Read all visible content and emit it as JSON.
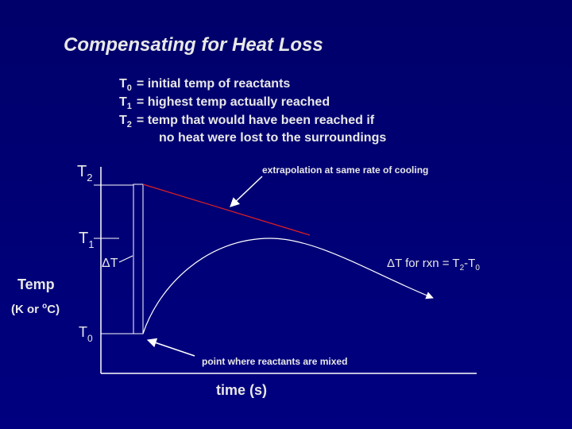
{
  "title": "Compensating for Heat Loss",
  "definitions": [
    {
      "symbol": "T",
      "sub": "0",
      "text": "= initial temp of reactants"
    },
    {
      "symbol": "T",
      "sub": "1",
      "text": "= highest temp actually reached"
    },
    {
      "symbol": "T",
      "sub": "2",
      "text": "= temp that would have been reached if",
      "continuation": "no heat were lost to the surroundings"
    }
  ],
  "y_axis": {
    "label": "Temp",
    "unit_open": "(K or ",
    "unit_sup": "o",
    "unit_close": "C)"
  },
  "x_axis": {
    "label": "time (s)"
  },
  "levels": [
    {
      "symbol": "T",
      "sub": "2"
    },
    {
      "symbol": "T",
      "sub": "1"
    },
    {
      "symbol": "T",
      "sub": "0"
    }
  ],
  "annotations": {
    "extrapolation": "extrapolation at same rate of cooling",
    "mixing": "point where reactants are mixed",
    "delta_t": "ΔT",
    "delta_rxn": {
      "prefix": "ΔT for rxn = T",
      "sub_a": "2",
      "middle": "-T",
      "sub_b": "0"
    }
  }
}
